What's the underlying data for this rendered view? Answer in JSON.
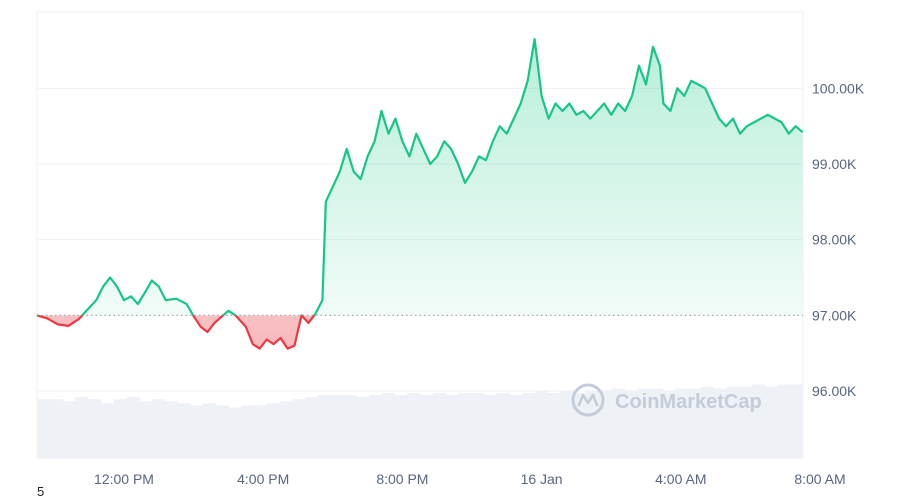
{
  "watermark": "CoinMarketCap",
  "footnote": "5",
  "chart_data": {
    "type": "area",
    "baseline": 97000,
    "ylim": [
      95000,
      101000
    ],
    "y_ticks": [
      {
        "value": 96000,
        "label": "96.00K"
      },
      {
        "value": 97000,
        "label": "97.00K"
      },
      {
        "value": 98000,
        "label": "98.00K"
      },
      {
        "value": 99000,
        "label": "99.00K"
      },
      {
        "value": 100000,
        "label": "100.00K"
      }
    ],
    "xlim": [
      0,
      24
    ],
    "x_ticks": [
      {
        "value": 2.5,
        "label": "12:00 PM"
      },
      {
        "value": 6.5,
        "label": "4:00 PM"
      },
      {
        "value": 10.5,
        "label": "8:00 PM"
      },
      {
        "value": 14.5,
        "label": "16 Jan"
      },
      {
        "value": 18.5,
        "label": "4:00 AM"
      },
      {
        "value": 22.5,
        "label": "8:00 AM"
      }
    ],
    "colors": {
      "up": "#16c784",
      "down": "#ea3943",
      "volume": "#eef1f5",
      "grid": "#eff2f5"
    },
    "series": [
      {
        "values": [
          [
            0.0,
            97000
          ],
          [
            0.3,
            96960
          ],
          [
            0.6,
            96880
          ],
          [
            0.9,
            96860
          ],
          [
            1.2,
            96950
          ],
          [
            1.4,
            97050
          ],
          [
            1.7,
            97200
          ],
          [
            1.9,
            97380
          ],
          [
            2.1,
            97500
          ],
          [
            2.3,
            97380
          ],
          [
            2.5,
            97200
          ],
          [
            2.7,
            97250
          ],
          [
            2.9,
            97150
          ],
          [
            3.1,
            97300
          ],
          [
            3.3,
            97460
          ],
          [
            3.5,
            97380
          ],
          [
            3.7,
            97200
          ],
          [
            4.0,
            97220
          ],
          [
            4.3,
            97150
          ],
          [
            4.5,
            96990
          ],
          [
            4.7,
            96850
          ],
          [
            4.9,
            96780
          ],
          [
            5.1,
            96900
          ],
          [
            5.3,
            96980
          ],
          [
            5.5,
            97060
          ],
          [
            5.7,
            97000
          ],
          [
            6.0,
            96850
          ],
          [
            6.2,
            96620
          ],
          [
            6.4,
            96560
          ],
          [
            6.6,
            96680
          ],
          [
            6.8,
            96620
          ],
          [
            7.0,
            96700
          ],
          [
            7.2,
            96560
          ],
          [
            7.4,
            96600
          ],
          [
            7.6,
            97000
          ],
          [
            7.8,
            96900
          ],
          [
            8.0,
            97020
          ],
          [
            8.2,
            97200
          ],
          [
            8.3,
            98500
          ],
          [
            8.5,
            98700
          ],
          [
            8.7,
            98900
          ],
          [
            8.9,
            99200
          ],
          [
            9.1,
            98900
          ],
          [
            9.3,
            98800
          ],
          [
            9.5,
            99100
          ],
          [
            9.7,
            99300
          ],
          [
            9.9,
            99700
          ],
          [
            10.1,
            99400
          ],
          [
            10.3,
            99600
          ],
          [
            10.5,
            99300
          ],
          [
            10.7,
            99100
          ],
          [
            10.9,
            99400
          ],
          [
            11.1,
            99200
          ],
          [
            11.3,
            99000
          ],
          [
            11.5,
            99100
          ],
          [
            11.7,
            99300
          ],
          [
            11.9,
            99200
          ],
          [
            12.1,
            99000
          ],
          [
            12.3,
            98750
          ],
          [
            12.5,
            98900
          ],
          [
            12.7,
            99100
          ],
          [
            12.9,
            99050
          ],
          [
            13.1,
            99300
          ],
          [
            13.3,
            99500
          ],
          [
            13.5,
            99400
          ],
          [
            13.7,
            99600
          ],
          [
            13.9,
            99800
          ],
          [
            14.1,
            100100
          ],
          [
            14.3,
            100650
          ],
          [
            14.5,
            99900
          ],
          [
            14.7,
            99600
          ],
          [
            14.9,
            99800
          ],
          [
            15.1,
            99700
          ],
          [
            15.3,
            99800
          ],
          [
            15.5,
            99650
          ],
          [
            15.7,
            99700
          ],
          [
            15.9,
            99600
          ],
          [
            16.1,
            99700
          ],
          [
            16.3,
            99800
          ],
          [
            16.5,
            99650
          ],
          [
            16.7,
            99800
          ],
          [
            16.9,
            99700
          ],
          [
            17.1,
            99900
          ],
          [
            17.3,
            100300
          ],
          [
            17.5,
            100050
          ],
          [
            17.7,
            100550
          ],
          [
            17.9,
            100300
          ],
          [
            18.0,
            99800
          ],
          [
            18.2,
            99700
          ],
          [
            18.4,
            100000
          ],
          [
            18.6,
            99900
          ],
          [
            18.8,
            100100
          ],
          [
            19.0,
            100050
          ],
          [
            19.2,
            100000
          ],
          [
            19.4,
            99800
          ],
          [
            19.6,
            99600
          ],
          [
            19.8,
            99500
          ],
          [
            20.0,
            99600
          ],
          [
            20.2,
            99400
          ],
          [
            20.4,
            99500
          ],
          [
            20.6,
            99550
          ],
          [
            20.8,
            99600
          ],
          [
            21.0,
            99650
          ],
          [
            21.2,
            99600
          ],
          [
            21.4,
            99550
          ],
          [
            21.6,
            99400
          ],
          [
            21.8,
            99500
          ],
          [
            22.0,
            99420
          ]
        ]
      }
    ],
    "volume_bars": [
      0.28,
      0.28,
      0.27,
      0.29,
      0.28,
      0.26,
      0.28,
      0.29,
      0.27,
      0.28,
      0.27,
      0.26,
      0.25,
      0.26,
      0.25,
      0.24,
      0.25,
      0.25,
      0.26,
      0.27,
      0.28,
      0.29,
      0.3,
      0.3,
      0.3,
      0.29,
      0.3,
      0.31,
      0.3,
      0.31,
      0.3,
      0.31,
      0.3,
      0.31,
      0.31,
      0.3,
      0.31,
      0.3,
      0.31,
      0.32,
      0.31,
      0.32,
      0.31,
      0.32,
      0.32,
      0.33,
      0.32,
      0.33,
      0.33,
      0.32,
      0.33,
      0.33,
      0.34,
      0.33,
      0.34,
      0.34,
      0.35,
      0.34,
      0.35,
      0.35
    ],
    "grid": true
  }
}
